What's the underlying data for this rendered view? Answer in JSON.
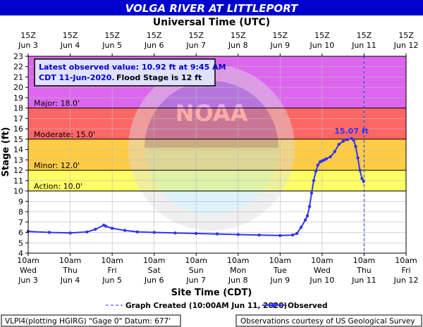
{
  "chart_data": {
    "type": "line",
    "title": "VOLGA RIVER AT LITTLEPORT",
    "top_axis_title": "Universal Time (UTC)",
    "xlabel": "Site Time (CDT)",
    "ylabel": "Stage (ft)",
    "ylim": [
      4,
      23
    ],
    "yticks": [
      4,
      5,
      6,
      7,
      8,
      9,
      10,
      11,
      12,
      13,
      14,
      15,
      16,
      17,
      18,
      19,
      20,
      21,
      22,
      23
    ],
    "grid": true,
    "top_ticks": [
      {
        "line1": "15Z",
        "line2": "Jun 3"
      },
      {
        "line1": "15Z",
        "line2": "Jun 4"
      },
      {
        "line1": "15Z",
        "line2": "Jun 5"
      },
      {
        "line1": "15Z",
        "line2": "Jun 6"
      },
      {
        "line1": "15Z",
        "line2": "Jun 7"
      },
      {
        "line1": "15Z",
        "line2": "Jun 8"
      },
      {
        "line1": "15Z",
        "line2": "Jun 9"
      },
      {
        "line1": "15Z",
        "line2": "Jun 10"
      },
      {
        "line1": "15Z",
        "line2": "Jun 11"
      },
      {
        "line1": "15Z",
        "line2": "Jun 12"
      }
    ],
    "bottom_ticks": [
      {
        "line1": "10am",
        "line2": "Wed",
        "line3": "Jun 3"
      },
      {
        "line1": "10am",
        "line2": "Thu",
        "line3": "Jun 4"
      },
      {
        "line1": "10am",
        "line2": "Fri",
        "line3": "Jun 5"
      },
      {
        "line1": "10am",
        "line2": "Sat",
        "line3": "Jun 6"
      },
      {
        "line1": "10am",
        "line2": "Sun",
        "line3": "Jun 7"
      },
      {
        "line1": "10am",
        "line2": "Mon",
        "line3": "Jun 8"
      },
      {
        "line1": "10am",
        "line2": "Tue",
        "line3": "Jun 9"
      },
      {
        "line1": "10am",
        "line2": "Wed",
        "line3": "Jun 10"
      },
      {
        "line1": "10am",
        "line2": "Thu",
        "line3": "Jun 11"
      },
      {
        "line1": "10am",
        "line2": "Fri",
        "line3": "Jun 12"
      }
    ],
    "flood_categories": [
      {
        "name": "Action",
        "label": "Action: 10.0'",
        "from": 10,
        "to": 12,
        "color": "#ffff66"
      },
      {
        "name": "Minor",
        "label": "Minor: 12.0'",
        "from": 12,
        "to": 15,
        "color": "#ffcc44"
      },
      {
        "name": "Moderate",
        "label": "Moderate: 15.0'",
        "from": 15,
        "to": 18,
        "color": "#ff6666"
      },
      {
        "name": "Major",
        "label": "Major: 18.0'",
        "from": 18,
        "to": 23,
        "color": "#dd66ee"
      }
    ],
    "info_box": {
      "line1": "Latest observed value: 10.92 ft at 9:45 AM",
      "line2a": "CDT 11-Jun-2020.",
      "line2b": "Flood Stage is 12 ft"
    },
    "peak_label": "15.07 ft",
    "series": [
      {
        "name": "Observed",
        "color": "#3333ee",
        "x": [
          0,
          0.5,
          1,
          1.4,
          1.6,
          1.8,
          1.85,
          2.0,
          2.3,
          2.6,
          3.0,
          3.5,
          4.0,
          4.5,
          5.0,
          5.5,
          6.0,
          6.3,
          6.4,
          6.5,
          6.6,
          6.65,
          6.7,
          6.75,
          6.8,
          6.85,
          6.9,
          6.95,
          7.0,
          7.05,
          7.1,
          7.2,
          7.3,
          7.4,
          7.5,
          7.6,
          7.7,
          7.75,
          7.8,
          7.85,
          7.9,
          7.95,
          7.99
        ],
        "values": [
          6.1,
          6.0,
          5.95,
          6.05,
          6.3,
          6.7,
          6.6,
          6.4,
          6.2,
          6.05,
          6.0,
          5.95,
          5.9,
          5.85,
          5.8,
          5.75,
          5.7,
          5.75,
          5.9,
          6.5,
          7.2,
          7.6,
          8.5,
          9.8,
          11.0,
          11.9,
          12.5,
          12.8,
          12.9,
          13.0,
          13.1,
          13.3,
          13.8,
          14.5,
          14.8,
          14.95,
          15.07,
          14.9,
          14.3,
          13.2,
          12.0,
          11.2,
          10.92
        ]
      },
      {
        "name": "Graph Created (10:00AM Jun 11, 2020)",
        "type": "vertical-line",
        "x": 8.0,
        "color": "#3333ee"
      }
    ]
  },
  "watermark": "NOAA",
  "legend": {
    "created": "Graph Created (10:00AM Jun 11, 2020)",
    "observed": "Observed"
  },
  "footer": {
    "left": "VLPI4(plotting HGIRG) \"Gage 0\" Datum: 677'",
    "right": "Observations courtesy of US Geological Survey"
  }
}
